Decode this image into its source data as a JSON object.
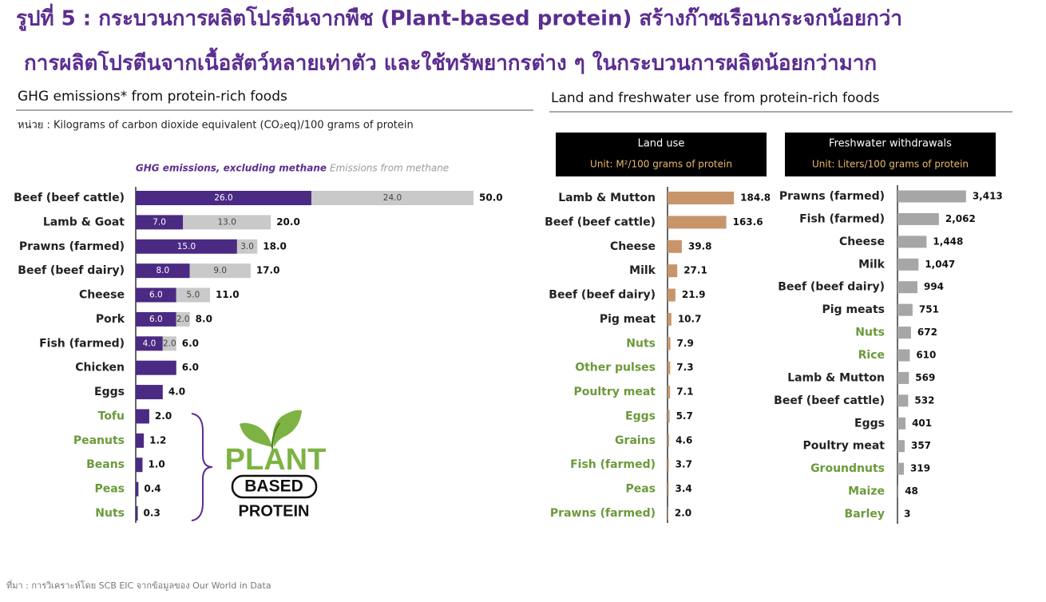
{
  "header": {
    "title_line1": "รูปที่ 5 : กระบวนการผลิตโปรตีนจากพืช (Plant-based protein) สร้างก๊าซเรือนกระจกน้อยกว่า",
    "title_line2": "การผลิตโปรตีนจากเนื้อสัตว์หลายเท่าตัว และใช้ทรัพยากรต่าง ๆ ในกระบวนการผลิตน้อยกว่ามาก"
  },
  "section_title": "Land and freshwater use from protein-rich foods",
  "logo": {
    "line1": "PLANT",
    "line2": "BASED",
    "line3": "PROTEIN"
  },
  "footer": "ที่มา : การวิเคราะห์โดย SCB EIC จากข้อมูลของ Our World in Data",
  "chart_data": [
    {
      "type": "stacked_barh",
      "title": "GHG emissions* from protein-rich foods",
      "subtitle": "หน่วย : Kilograms of carbon dioxide equivalent (CO₂eq)/100 grams of protein",
      "categories": [
        "Beef (beef cattle)",
        "Lamb & Goat",
        "Prawns (farmed)",
        "Beef (beef dairy)",
        "Cheese",
        "Pork",
        "Fish (farmed)",
        "Chicken",
        "Eggs",
        "Tofu",
        "Peanuts",
        "Beans",
        "Peas",
        "Nuts"
      ],
      "category_colors": [
        "#222222",
        "#222222",
        "#222222",
        "#222222",
        "#222222",
        "#222222",
        "#222222",
        "#222222",
        "#222222",
        "#6a9a3a",
        "#6a9a3a",
        "#6a9a3a",
        "#6a9a3a",
        "#6a9a3a"
      ],
      "series": [
        {
          "name": "GHG emissions, excluding methane",
          "color": "#4b2a84",
          "values": [
            26,
            7,
            15,
            8,
            6,
            6,
            4,
            6,
            4,
            2,
            1.2,
            1,
            0.4,
            0.3
          ],
          "value_labels": [
            "26.0",
            "7.0",
            "15.0",
            "8.0",
            "6.0",
            "6.0",
            "4.0",
            null,
            null,
            null,
            null,
            null,
            null,
            null
          ]
        },
        {
          "name": "Emissions from methane",
          "color": "#c9c9c9",
          "values": [
            24,
            13,
            3,
            9,
            5,
            2,
            2,
            null,
            null,
            null,
            null,
            null,
            null,
            null
          ],
          "value_labels": [
            "24.0",
            "13.0",
            "3.0",
            "9.0",
            "5.0",
            "2.0",
            "2.0",
            null,
            null,
            null,
            null,
            null,
            null,
            null
          ]
        }
      ],
      "totals": [
        50,
        20,
        18,
        17,
        11,
        8,
        6,
        6,
        4,
        2,
        1.2,
        1,
        0.4,
        0.3
      ],
      "total_labels": [
        "50.0",
        "20.0",
        "18.0",
        "17.0",
        "11.0",
        "8.0",
        "6.0",
        "6.0",
        "4.0",
        "2.0",
        "1.2",
        "1.0",
        "0.4",
        "0.3"
      ],
      "xlim": [
        0,
        50
      ]
    },
    {
      "type": "barh",
      "title": "Land use",
      "subtitle": "Unit: M²/100 grams of protein",
      "color": "#c8956a",
      "categories": [
        "Lamb & Mutton",
        "Beef (beef cattle)",
        "Cheese",
        "Milk",
        "Beef (beef dairy)",
        "Pig meat",
        "Nuts",
        "Other pulses",
        "Poultry meat",
        "Eggs",
        "Grains",
        "Fish (farmed)",
        "Peas",
        "Prawns (farmed)"
      ],
      "category_colors": [
        "#222222",
        "#222222",
        "#222222",
        "#222222",
        "#222222",
        "#222222",
        "#6a9a3a",
        "#6a9a3a",
        "#6a9a3a",
        "#6a9a3a",
        "#6a9a3a",
        "#6a9a3a",
        "#6a9a3a",
        "#6a9a3a"
      ],
      "values": [
        184.8,
        163.6,
        39.8,
        27.1,
        21.9,
        10.7,
        7.9,
        7.3,
        7.1,
        5.7,
        4.6,
        3.7,
        3.4,
        2
      ],
      "value_labels": [
        "184.8",
        "163.6",
        "39.8",
        "27.1",
        "21.9",
        "10.7",
        "7.9",
        "7.3",
        "7.1",
        "5.7",
        "4.6",
        "3.7",
        "3.4",
        "2.0"
      ],
      "xlim": [
        0,
        200
      ]
    },
    {
      "type": "barh",
      "title": "Freshwater withdrawals",
      "subtitle": "Unit: Liters/100 grams of protein",
      "color": "#a6a6a6",
      "categories": [
        "Prawns (farmed)",
        "Fish (farmed)",
        "Cheese",
        "Milk",
        "Beef (beef dairy)",
        "Pig meats",
        "Nuts",
        "Rice",
        "Lamb & Mutton",
        "Beef (beef cattle)",
        "Eggs",
        "Poultry meat",
        "Groundnuts",
        "Maize",
        "Barley"
      ],
      "category_colors": [
        "#222222",
        "#222222",
        "#222222",
        "#222222",
        "#222222",
        "#222222",
        "#6a9a3a",
        "#6a9a3a",
        "#222222",
        "#222222",
        "#222222",
        "#222222",
        "#6a9a3a",
        "#6a9a3a",
        "#6a9a3a"
      ],
      "values": [
        3413,
        2062,
        1448,
        1047,
        994,
        751,
        672,
        610,
        569,
        532,
        401,
        357,
        319,
        48,
        3
      ],
      "value_labels": [
        "3,413",
        "2,062",
        "1,448",
        "1,047",
        "994",
        "751",
        "672",
        "610",
        "569",
        "532",
        "401",
        "357",
        "319",
        "48",
        "3"
      ],
      "xlim": [
        0,
        3500
      ]
    }
  ]
}
